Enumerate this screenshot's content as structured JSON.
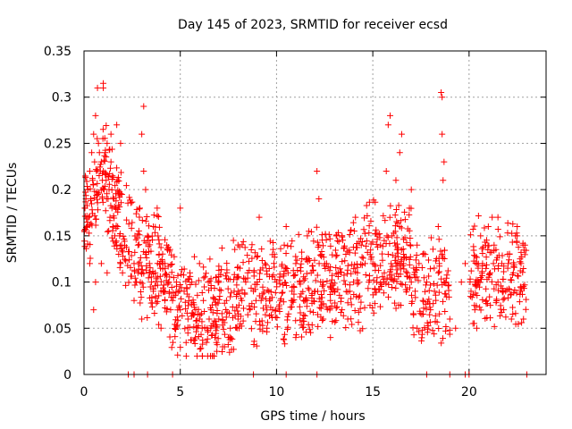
{
  "chart_data": {
    "type": "scatter",
    "title": "Day 145 of 2023, SRMTID for receiver ecsd",
    "xlabel": "GPS time / hours",
    "ylabel": "SRMTID / TECUs",
    "xlim": [
      0,
      24
    ],
    "ylim": [
      0,
      0.35
    ],
    "xticks": [
      0,
      5,
      10,
      15,
      20
    ],
    "xtick_labels": [
      "0",
      "5",
      "10",
      "15",
      "20"
    ],
    "yticks": [
      0,
      0.05,
      0.1,
      0.15,
      0.2,
      0.25,
      0.3,
      0.35
    ],
    "ytick_labels": [
      "0",
      "0.05",
      "0.1",
      "0.15",
      "0.2",
      "0.25",
      "0.3",
      "0.35"
    ],
    "grid": true,
    "marker": "+",
    "color": "#ff0000",
    "series": [
      {
        "name": "SRMTID",
        "x": [
          0.05,
          0.1,
          0.15,
          0.2,
          0.25,
          0.3,
          0.35,
          0.4,
          0.45,
          0.5,
          0.55,
          0.6,
          0.65,
          0.7,
          0.75,
          0.8,
          0.85,
          0.9,
          0.95,
          1.0,
          1.05,
          1.1,
          1.15,
          1.2,
          1.25,
          1.3,
          1.35,
          1.4,
          1.45,
          1.5,
          1.55,
          1.6,
          1.65,
          1.7,
          1.75,
          1.8,
          1.85,
          1.9,
          1.95,
          2.0,
          0.3,
          0.6,
          0.9,
          1.0,
          1.0,
          1.4,
          1.7,
          1.9,
          0.5,
          1.2,
          2.6,
          2.7,
          2.8,
          2.9,
          3.0,
          3.1,
          3.2,
          3.3,
          3.4,
          3.5,
          3.6,
          3.7,
          3.8,
          3.9,
          4.0,
          4.1,
          4.2,
          4.3,
          4.4,
          4.5,
          3.1,
          3.2,
          3.0,
          2.6,
          2.8,
          3.6,
          4.0,
          4.2,
          4.6,
          4.8,
          5.0,
          5.2,
          5.4,
          5.6,
          5.8,
          6.0,
          6.2,
          6.4,
          6.6,
          6.8,
          7.0,
          7.2,
          7.4,
          7.6,
          7.8,
          8.0,
          8.2,
          8.4,
          8.6,
          8.8,
          5.0,
          5.5,
          6.0,
          6.5,
          7.0,
          7.5,
          8.0,
          8.5,
          6.9,
          7.3,
          9.0,
          9.2,
          9.4,
          9.6,
          9.8,
          10.0,
          10.2,
          10.4,
          10.6,
          10.8,
          11.0,
          11.2,
          11.4,
          11.6,
          11.8,
          12.0,
          12.2,
          12.4,
          12.6,
          12.8,
          13.0,
          13.2,
          13.4,
          13.6,
          13.8,
          14.0,
          14.2,
          14.4,
          14.6,
          14.8,
          9.1,
          10.5,
          12.1,
          12.2,
          13.1,
          14.1,
          9.5,
          11.0,
          12.8,
          13.7,
          15.0,
          15.2,
          15.4,
          15.6,
          15.8,
          16.0,
          16.2,
          16.4,
          16.6,
          16.8,
          17.0,
          17.2,
          17.4,
          17.6,
          17.8,
          18.0,
          18.2,
          18.4,
          18.6,
          18.8,
          15.8,
          15.9,
          16.4,
          16.5,
          15.7,
          16.2,
          18.6,
          18.55,
          18.6,
          18.7,
          18.65,
          18.4,
          17.3,
          17.0,
          16.9,
          17.6,
          19.0,
          19.3,
          19.6,
          19.8,
          20.1,
          20.3,
          20.5,
          20.7,
          20.9,
          21.1,
          21.3,
          21.5,
          21.7,
          21.9,
          22.1,
          22.3,
          22.5,
          22.7,
          22.9,
          20.6,
          21.0,
          21.5,
          22.0,
          22.5,
          22.8,
          21.2,
          20.4,
          22.2,
          21.8
        ],
        "y": [
          0.18,
          0.19,
          0.16,
          0.2,
          0.17,
          0.22,
          0.19,
          0.24,
          0.21,
          0.26,
          0.23,
          0.28,
          0.22,
          0.31,
          0.25,
          0.24,
          0.22,
          0.23,
          0.21,
          0.22,
          0.2,
          0.24,
          0.21,
          0.25,
          0.19,
          0.2,
          0.17,
          0.23,
          0.18,
          0.16,
          0.19,
          0.15,
          0.18,
          0.14,
          0.16,
          0.13,
          0.15,
          0.12,
          0.14,
          0.11,
          0.12,
          0.1,
          0.12,
          0.315,
          0.31,
          0.26,
          0.27,
          0.25,
          0.07,
          0.11,
          0.12,
          0.1,
          0.14,
          0.18,
          0.26,
          0.29,
          0.2,
          0.15,
          0.12,
          0.1,
          0.16,
          0.11,
          0.18,
          0.13,
          0.09,
          0.12,
          0.08,
          0.14,
          0.1,
          0.07,
          0.22,
          0.13,
          0.06,
          0.08,
          0.11,
          0.09,
          0.05,
          0.12,
          0.08,
          0.1,
          0.07,
          0.09,
          0.06,
          0.1,
          0.07,
          0.06,
          0.08,
          0.05,
          0.07,
          0.04,
          0.06,
          0.03,
          0.08,
          0.05,
          0.09,
          0.06,
          0.08,
          0.1,
          0.07,
          0.09,
          0.18,
          0.11,
          0.12,
          0.06,
          0.1,
          0.04,
          0.09,
          0.11,
          0.025,
          0.03,
          0.1,
          0.08,
          0.12,
          0.09,
          0.07,
          0.1,
          0.08,
          0.14,
          0.11,
          0.09,
          0.12,
          0.1,
          0.08,
          0.15,
          0.11,
          0.09,
          0.14,
          0.1,
          0.12,
          0.08,
          0.09,
          0.11,
          0.07,
          0.13,
          0.09,
          0.1,
          0.11,
          0.14,
          0.12,
          0.1,
          0.17,
          0.16,
          0.22,
          0.19,
          0.15,
          0.17,
          0.05,
          0.04,
          0.04,
          0.06,
          0.12,
          0.1,
          0.14,
          0.11,
          0.13,
          0.15,
          0.12,
          0.16,
          0.13,
          0.11,
          0.1,
          0.09,
          0.12,
          0.08,
          0.1,
          0.07,
          0.09,
          0.11,
          0.13,
          0.1,
          0.27,
          0.28,
          0.24,
          0.26,
          0.22,
          0.21,
          0.3,
          0.305,
          0.26,
          0.23,
          0.21,
          0.16,
          0.14,
          0.2,
          0.18,
          0.13,
          0.06,
          0.05,
          0.1,
          0.12,
          0.09,
          0.07,
          0.1,
          0.12,
          0.08,
          0.11,
          0.14,
          0.1,
          0.12,
          0.09,
          0.13,
          0.11,
          0.15,
          0.12,
          0.14,
          0.15,
          0.16,
          0.17,
          0.13,
          0.16,
          0.14,
          0.17,
          0.05,
          0.06,
          0.07
        ],
        "zero_markers_x": [
          2.3,
          2.6,
          3.3,
          4.6,
          8.8,
          10.5,
          12.1,
          17.8,
          19.0,
          19.8,
          20.0,
          23.0
        ]
      }
    ]
  }
}
